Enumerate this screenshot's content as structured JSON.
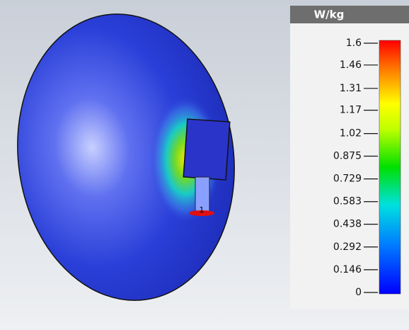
{
  "colorbar": {
    "title": "W/kg",
    "lim": [
      0,
      1.6
    ],
    "ticks": [
      1.6,
      1.46,
      1.31,
      1.17,
      1.02,
      0.875,
      0.729,
      0.583,
      0.438,
      0.292,
      0.146,
      0
    ]
  },
  "model": {
    "port_label": "1"
  }
}
